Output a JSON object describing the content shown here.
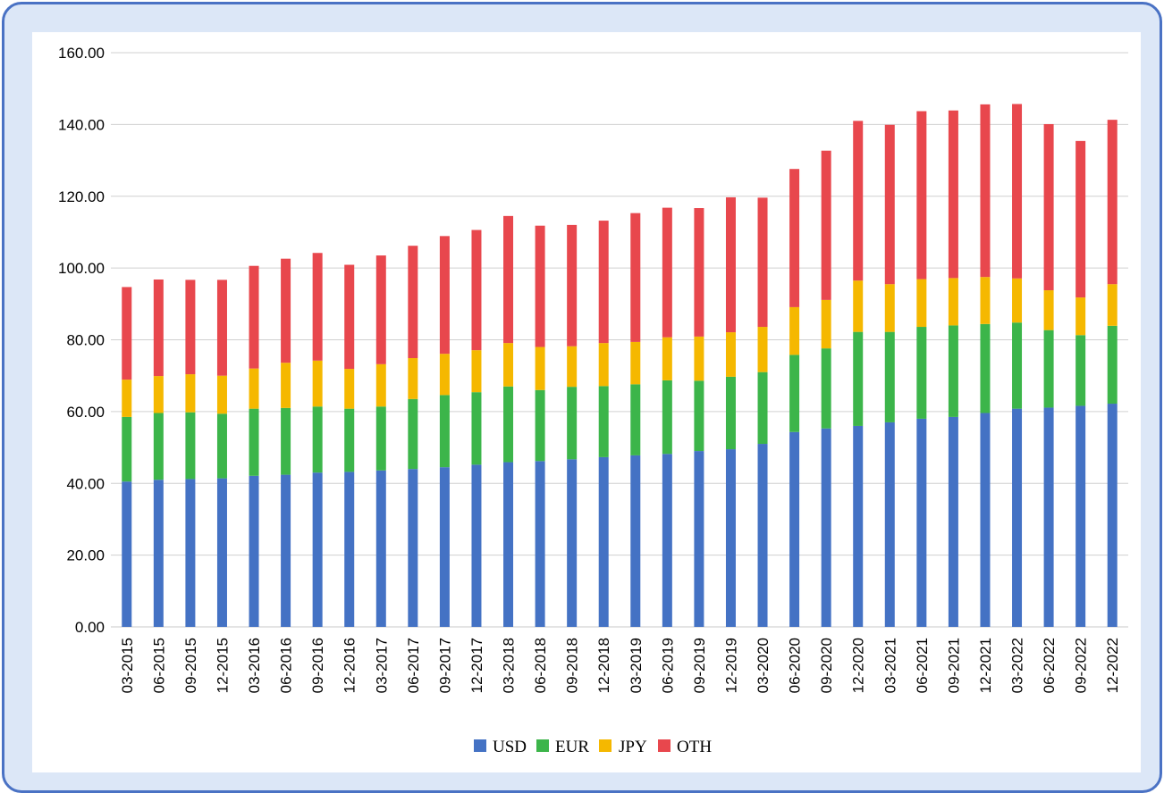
{
  "chart_data": {
    "type": "bar",
    "stacked": true,
    "title": "",
    "xlabel": "",
    "ylabel": "",
    "ylim": [
      0,
      160
    ],
    "yticks": [
      "0.00",
      "20.00",
      "40.00",
      "60.00",
      "80.00",
      "100.00",
      "120.00",
      "140.00",
      "160.00"
    ],
    "grid": true,
    "legend_position": "bottom",
    "categories": [
      "03-2015",
      "06-2015",
      "09-2015",
      "12-2015",
      "03-2016",
      "06-2016",
      "09-2016",
      "12-2016",
      "03-2017",
      "06-2017",
      "09-2017",
      "12-2017",
      "03-2018",
      "06-2018",
      "09-2018",
      "12-2018",
      "03-2019",
      "06-2019",
      "09-2019",
      "12-2019",
      "03-2020",
      "06-2020",
      "09-2020",
      "12-2020",
      "03-2021",
      "06-2021",
      "09-2021",
      "12-2021",
      "03-2022",
      "06-2022",
      "09-2022",
      "12-2022"
    ],
    "series": [
      {
        "name": "USD",
        "color": "#4472c4",
        "values": [
          40.5,
          41,
          41.2,
          41.4,
          42.1,
          42.4,
          43,
          43.2,
          43.6,
          44,
          44.5,
          45.2,
          45.9,
          46.2,
          46.7,
          47.3,
          47.8,
          48.2,
          49,
          49.5,
          51,
          54.3,
          55.3,
          56,
          57,
          58,
          58.5,
          59.6,
          60.8,
          61.1,
          61.6,
          62.2
        ]
      },
      {
        "name": "EUR",
        "color": "#3cb54a",
        "values": [
          18,
          18.6,
          18.6,
          18,
          18.7,
          18.6,
          18.4,
          17.6,
          17.8,
          19.5,
          20.1,
          20.2,
          21.1,
          19.8,
          20.2,
          19.8,
          19.8,
          20.5,
          19.6,
          20.2,
          20,
          21.5,
          22.3,
          26.2,
          25.2,
          25.6,
          25.5,
          24.8,
          24,
          21.6,
          19.7,
          21.7
        ]
      },
      {
        "name": "JPY",
        "color": "#f5b800",
        "values": [
          10.4,
          10.3,
          10.6,
          10.6,
          11.2,
          12.6,
          12.8,
          11.1,
          11.8,
          11.4,
          11.5,
          11.7,
          12.1,
          12,
          11.3,
          12,
          11.8,
          12,
          12.3,
          12.4,
          12.6,
          13.3,
          13.5,
          14.3,
          13.3,
          13.3,
          13.2,
          13.1,
          12.3,
          11.1,
          10.5,
          11.6
        ]
      },
      {
        "name": "OTH",
        "color": "#e8474d",
        "values": [
          25.8,
          26.9,
          26.3,
          26.7,
          28.6,
          29,
          30,
          29,
          30.3,
          31.3,
          32.8,
          33.5,
          35.4,
          33.8,
          33.8,
          34.1,
          35.9,
          36.1,
          35.8,
          37.6,
          36,
          38.5,
          41.6,
          44.5,
          44.4,
          46.8,
          46.7,
          48.1,
          48.6,
          46.3,
          43.6,
          45.8
        ]
      }
    ]
  }
}
